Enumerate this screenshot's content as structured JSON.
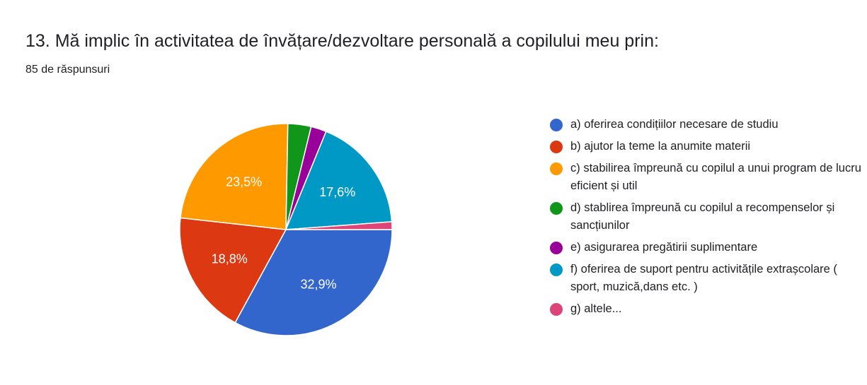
{
  "header": {
    "title": "13. Mă implic în activitatea de învățare/dezvoltare personală a copilului meu prin:",
    "subtitle": "85 de răspunsuri"
  },
  "chart_data": {
    "type": "pie",
    "total_responses": 85,
    "start_angle_deg": 0,
    "direction": "clockwise",
    "legend_position": "right",
    "slices": [
      {
        "label": "a) oferirea condițiilor necesare de studiu",
        "count": 28,
        "percent": 32.9,
        "pct_label": "32,9%",
        "color": "#3366cc"
      },
      {
        "label": "b) ajutor la teme la anumite materii",
        "count": 16,
        "percent": 18.8,
        "pct_label": "18,8%",
        "color": "#dc3912"
      },
      {
        "label": "c) stabilirea împreună cu copilul a unui program de lucru eficient și util",
        "count": 20,
        "percent": 23.5,
        "pct_label": "23,5%",
        "color": "#ff9900"
      },
      {
        "label": "d) stablirea împreună cu copilul a recompenselor și sancțiunilor",
        "count": 3,
        "percent": 3.5,
        "pct_label": "",
        "color": "#109618"
      },
      {
        "label": "e) asigurarea pregătirii suplimentare",
        "count": 2,
        "percent": 2.4,
        "pct_label": "",
        "color": "#990099"
      },
      {
        "label": "f) oferirea de suport pentru activitățile extrașcolare ( sport, muzică,dans etc. )",
        "count": 15,
        "percent": 17.6,
        "pct_label": "17,6%",
        "color": "#0099c6"
      },
      {
        "label": "g) altele...",
        "count": 1,
        "percent": 1.2,
        "pct_label": "",
        "color": "#dd4477"
      }
    ]
  }
}
